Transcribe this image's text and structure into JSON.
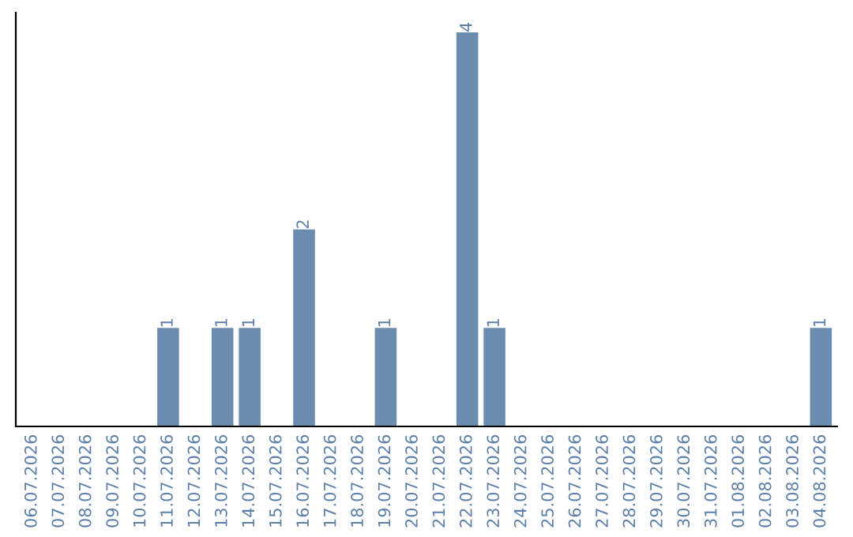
{
  "chart_data": {
    "type": "bar",
    "categories": [
      "06.07.2026",
      "07.07.2026",
      "08.07.2026",
      "09.07.2026",
      "10.07.2026",
      "11.07.2026",
      "12.07.2026",
      "13.07.2026",
      "14.07.2026",
      "15.07.2026",
      "16.07.2026",
      "17.07.2026",
      "18.07.2026",
      "19.07.2026",
      "20.07.2026",
      "21.07.2026",
      "22.07.2026",
      "23.07.2026",
      "24.07.2026",
      "25.07.2026",
      "26.07.2026",
      "27.07.2026",
      "28.07.2026",
      "29.07.2026",
      "30.07.2026",
      "31.07.2026",
      "01.08.2026",
      "02.08.2026",
      "03.08.2026",
      "04.08.2026"
    ],
    "values": [
      0,
      0,
      0,
      0,
      0,
      1,
      0,
      1,
      1,
      0,
      2,
      0,
      0,
      1,
      0,
      0,
      4,
      1,
      0,
      0,
      0,
      0,
      0,
      0,
      0,
      0,
      0,
      0,
      0,
      1
    ],
    "value_labels": [
      null,
      null,
      null,
      null,
      null,
      "1",
      null,
      "1",
      "1",
      null,
      "2",
      null,
      null,
      "1",
      null,
      null,
      "4",
      "1",
      null,
      null,
      null,
      null,
      null,
      null,
      null,
      null,
      null,
      null,
      null,
      "1"
    ],
    "color": "#6a8caf",
    "tick_labels": "x",
    "grid": false,
    "legend": false
  }
}
